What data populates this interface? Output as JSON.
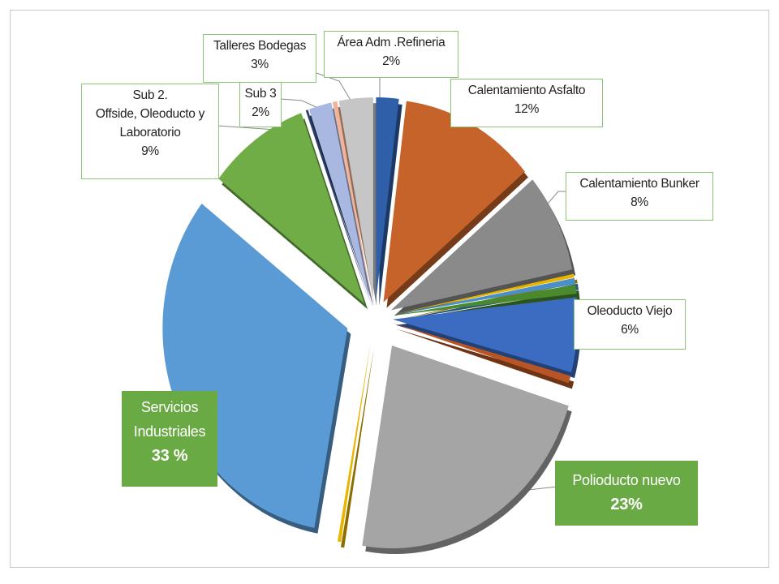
{
  "chart_data": {
    "type": "pie",
    "style": "3d-exploded",
    "title": "",
    "slices": [
      {
        "label": "Área Adm .Refineria",
        "percent_label": "2%",
        "value": 2,
        "color": "#2e5fa8"
      },
      {
        "label": "Calentamiento Asfalto",
        "percent_label": "12%",
        "value": 12,
        "color": "#c5632a"
      },
      {
        "label": "Calentamiento Bunker",
        "percent_label": "8%",
        "value": 8,
        "color": "#8a8a8a"
      },
      {
        "label": "",
        "percent_label": "",
        "value": 0.3,
        "color": "#e8b500"
      },
      {
        "label": "",
        "percent_label": "",
        "value": 0.5,
        "color": "#4a8fc8"
      },
      {
        "label": "",
        "percent_label": "",
        "value": 0.7,
        "color": "#4a8a2e"
      },
      {
        "label": "Oleoducto Viejo",
        "percent_label": "6%",
        "value": 6,
        "color": "#3b6cc2"
      },
      {
        "label": "",
        "percent_label": "",
        "value": 0.6,
        "color": "#b95524"
      },
      {
        "label": "Polioducto nuevo",
        "percent_label": "23%",
        "value": 23,
        "color": "#a5a5a5"
      },
      {
        "label": "",
        "percent_label": "",
        "value": 0.3,
        "color": "#e8b500"
      },
      {
        "label": "Servicios Industriales",
        "percent_label": "33 %",
        "value": 33,
        "color": "#5b9bd5"
      },
      {
        "label": "Sub 2. Offside, Oleoducto y Laboratorio",
        "percent_label": "9%",
        "value": 9,
        "color": "#70ad47"
      },
      {
        "label": "",
        "percent_label": "",
        "value": 0.2,
        "color": "#2b3f6b"
      },
      {
        "label": "Sub 3",
        "percent_label": "2%",
        "value": 2,
        "color": "#a9b8e0"
      },
      {
        "label": "",
        "percent_label": "",
        "value": 0.4,
        "color": "#f0b49a"
      },
      {
        "label": "Talleres Bodegas",
        "percent_label": "3%",
        "value": 3,
        "color": "#c6c6c6"
      }
    ],
    "labels": {
      "area_adm": {
        "name": "Área Adm .Refineria",
        "pct": "2%"
      },
      "asfalto": {
        "name": "Calentamiento Asfalto",
        "pct": "12%"
      },
      "bunker": {
        "name": "Calentamiento Bunker",
        "pct": "8%"
      },
      "oleoducto": {
        "name": "Oleoducto Viejo",
        "pct": "6%"
      },
      "polioducto": {
        "name": "Polioducto nuevo",
        "pct": "23%"
      },
      "servicios": {
        "name1": "Servicios",
        "name2": "Industriales",
        "pct": "33 %"
      },
      "sub2": {
        "name1": "Sub 2.",
        "name2": "Offside, Oleoducto y",
        "name3": "Laboratorio",
        "pct": "9%"
      },
      "sub3": {
        "name": "Sub 3",
        "pct": "2%"
      },
      "talleres": {
        "name": "Talleres Bodegas",
        "pct": "3%"
      }
    },
    "highlight_label_color": "#6aaa44",
    "label_border_color": "#8cc476"
  }
}
